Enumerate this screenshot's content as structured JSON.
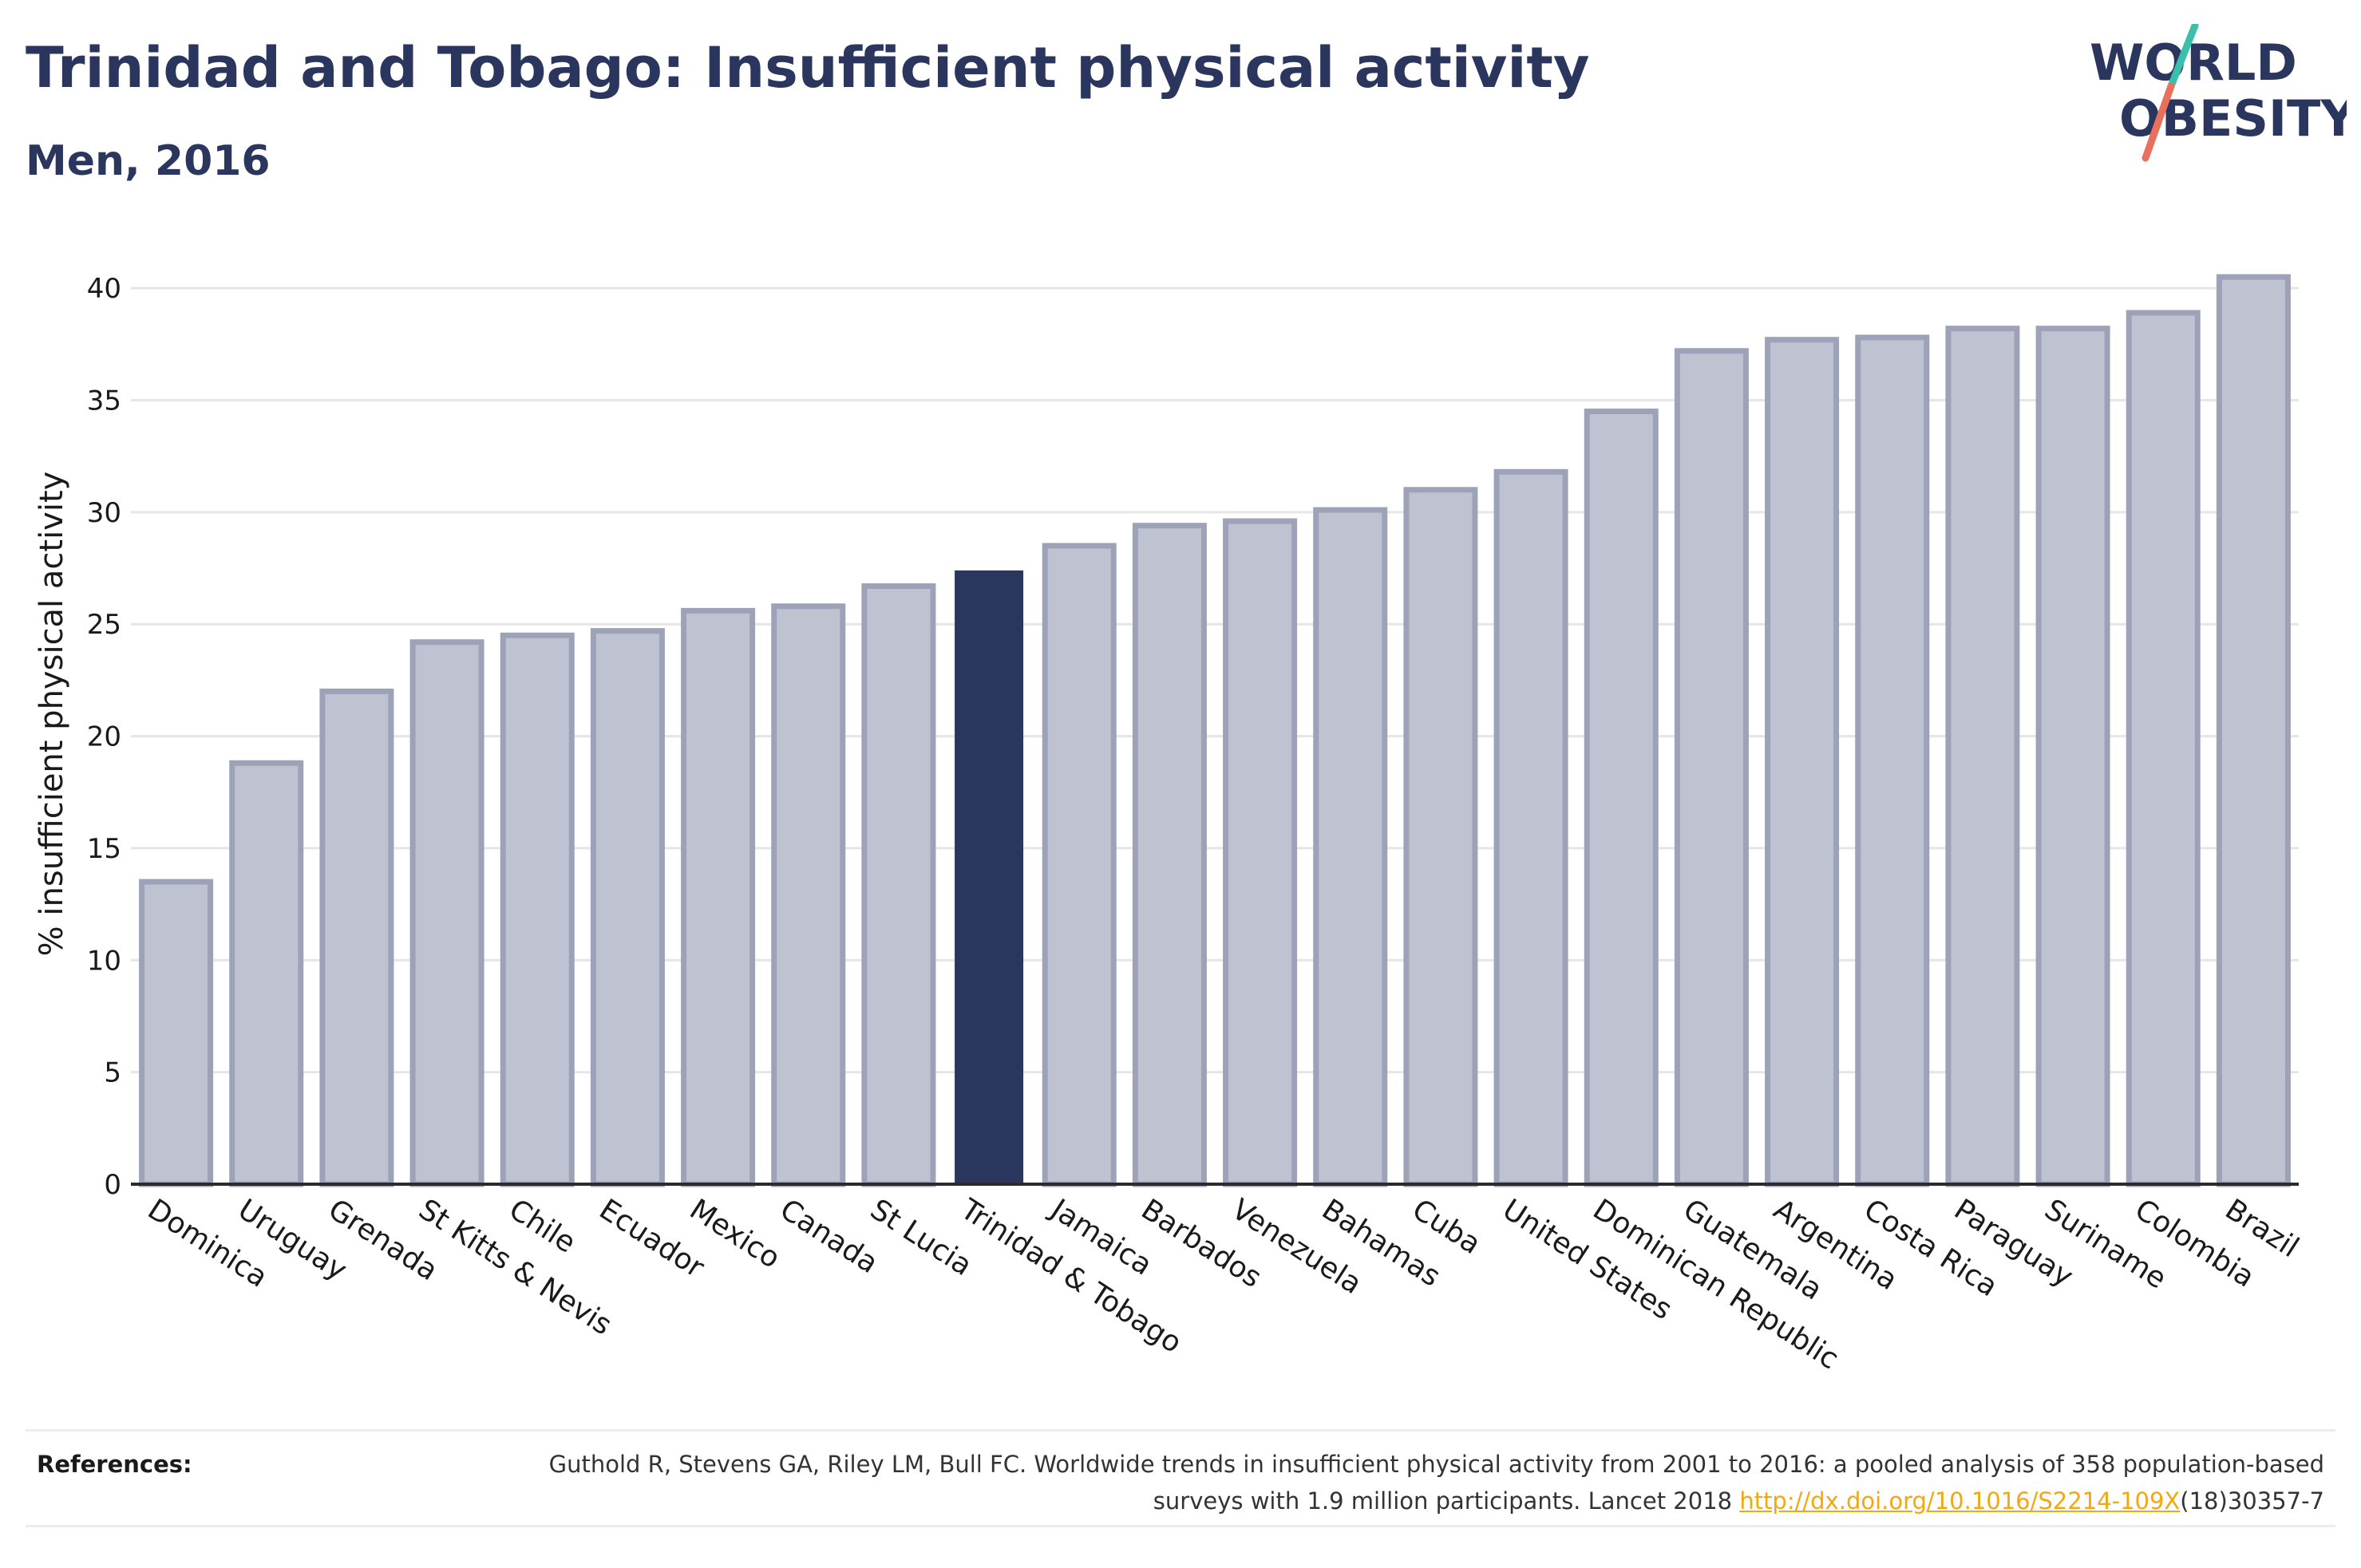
{
  "header": {
    "title": "Trinidad and Tobago: Insufficient physical activity",
    "subtitle": "Men, 2016"
  },
  "logo": {
    "line1": "WORLD",
    "line2": "OBESITY"
  },
  "chart_data": {
    "type": "bar",
    "title": "Trinidad and Tobago: Insufficient physical activity",
    "subtitle": "Men, 2016",
    "xlabel": "",
    "ylabel": "% insufficient physical activity",
    "ylim": [
      0,
      42
    ],
    "yticks": [
      0,
      5,
      10,
      15,
      20,
      25,
      30,
      35,
      40
    ],
    "grid": true,
    "categories": [
      "Dominica",
      "Uruguay",
      "Grenada",
      "St Kitts & Nevis",
      "Chile",
      "Ecuador",
      "Mexico",
      "Canada",
      "St Lucia",
      "Trinidad & Tobago",
      "Jamaica",
      "Barbados",
      "Venezuela",
      "Bahamas",
      "Cuba",
      "United States",
      "Dominican Republic",
      "Guatemala",
      "Argentina",
      "Costa Rica",
      "Paraguay",
      "Suriname",
      "Colombia",
      "Brazil"
    ],
    "values": [
      13.5,
      18.8,
      22.0,
      24.2,
      24.5,
      24.7,
      25.6,
      25.8,
      26.7,
      27.4,
      28.5,
      29.4,
      29.6,
      30.1,
      31.0,
      31.8,
      34.5,
      37.2,
      37.7,
      37.8,
      38.2,
      38.2,
      38.9,
      40.5
    ],
    "highlight": "Trinidad & Tobago",
    "colors": {
      "bar": "#bfc2d0",
      "bar_border": "#9da2b8",
      "highlight": "#2b365e",
      "grid": "#e6e6e6",
      "axis": "#2b2b2b"
    }
  },
  "references": {
    "label": "References:",
    "text": "Guthold R, Stevens GA, Riley LM, Bull FC. Worldwide trends in insufficient physical activity from 2001 to 2016: a pooled analysis of 358 population-based surveys with 1.9 million participants. Lancet 2018 ",
    "link": "http://dx.doi.org/10.1016/S2214-109X",
    "suffix": "(18)30357-7"
  }
}
